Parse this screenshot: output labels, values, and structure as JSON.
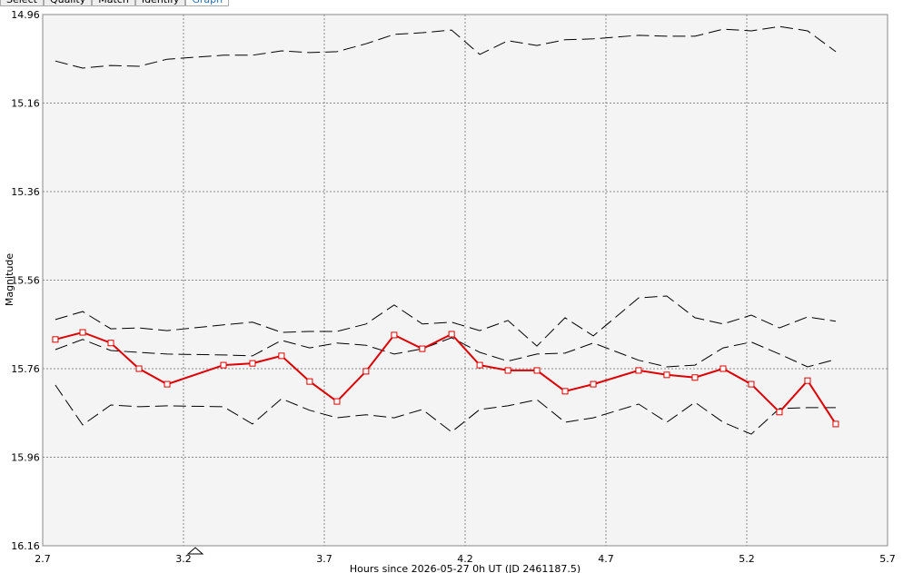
{
  "tabs": [
    "Select",
    "Quality",
    "Match",
    "Identify",
    "Graph"
  ],
  "chart_data": {
    "type": "line",
    "xlabel": "Hours since 2026-05-27 0h UT (JD 2461187.5)",
    "ylabel": "Magnitude",
    "xlim": [
      2.7,
      5.7
    ],
    "xticks": [
      2.7,
      3.2,
      3.7,
      4.2,
      4.7,
      5.2,
      5.7
    ],
    "ylim": [
      16.16,
      14.96
    ],
    "yticks": [
      14.96,
      15.16,
      15.36,
      15.56,
      15.76,
      15.96,
      16.16
    ],
    "grid": true,
    "x": [
      2.745,
      2.842,
      2.942,
      3.042,
      3.142,
      3.342,
      3.445,
      3.548,
      3.648,
      3.745,
      3.848,
      3.948,
      4.048,
      4.152,
      4.252,
      4.352,
      4.455,
      4.555,
      4.655,
      4.816,
      4.916,
      5.016,
      5.116,
      5.216,
      5.316,
      5.416,
      5.516
    ],
    "series": [
      {
        "color": "#000000",
        "dash": true,
        "markers": false,
        "values": [
          15.065,
          15.081,
          15.075,
          15.077,
          15.061,
          15.052,
          15.052,
          15.042,
          15.046,
          15.044,
          15.026,
          15.005,
          15.001,
          14.995,
          15.05,
          15.019,
          15.03,
          15.017,
          15.015,
          15.007,
          15.009,
          15.009,
          14.993,
          14.997,
          14.987,
          14.997,
          15.044
        ]
      },
      {
        "color": "#000000",
        "dash": true,
        "markers": false,
        "values": [
          15.649,
          15.631,
          15.67,
          15.668,
          15.674,
          15.661,
          15.655,
          15.678,
          15.676,
          15.676,
          15.659,
          15.616,
          15.659,
          15.655,
          15.674,
          15.651,
          15.709,
          15.645,
          15.686,
          15.6,
          15.596,
          15.645,
          15.659,
          15.639,
          15.668,
          15.643,
          15.653
        ]
      },
      {
        "color": "#000000",
        "dash": true,
        "markers": false,
        "values": [
          15.717,
          15.694,
          15.719,
          15.723,
          15.727,
          15.729,
          15.731,
          15.696,
          15.713,
          15.702,
          15.707,
          15.727,
          15.715,
          15.69,
          15.723,
          15.743,
          15.727,
          15.725,
          15.702,
          15.741,
          15.756,
          15.752,
          15.713,
          15.7,
          15.727,
          15.756,
          15.739
        ]
      },
      {
        "color": "#000000",
        "dash": true,
        "markers": false,
        "values": [
          15.797,
          15.887,
          15.842,
          15.846,
          15.844,
          15.846,
          15.885,
          15.828,
          15.854,
          15.871,
          15.864,
          15.871,
          15.852,
          15.903,
          15.852,
          15.844,
          15.83,
          15.881,
          15.871,
          15.84,
          15.881,
          15.836,
          15.881,
          15.908,
          15.85,
          15.848,
          15.848
        ]
      },
      {
        "color": "#dd0000",
        "dash": false,
        "markers": true,
        "values": [
          15.694,
          15.678,
          15.702,
          15.76,
          15.795,
          15.752,
          15.748,
          15.731,
          15.789,
          15.834,
          15.766,
          15.684,
          15.715,
          15.682,
          15.752,
          15.764,
          15.764,
          15.811,
          15.795,
          15.764,
          15.774,
          15.78,
          15.76,
          15.795,
          15.858,
          15.787,
          15.885
        ]
      }
    ]
  }
}
